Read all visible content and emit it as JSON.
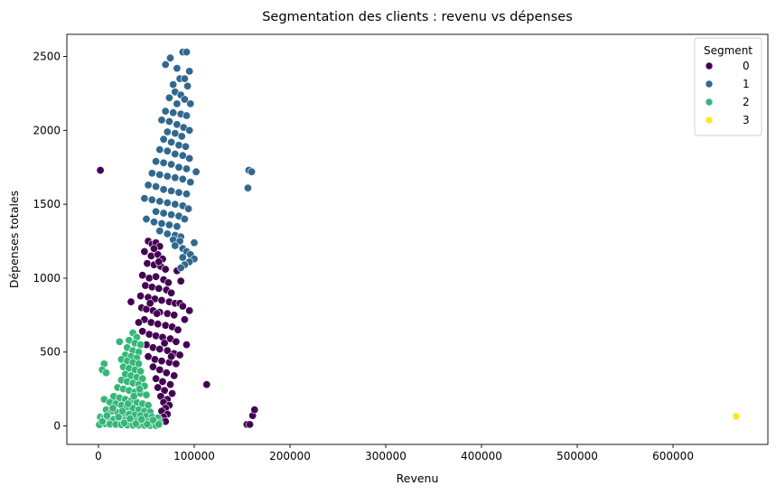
{
  "chart_data": {
    "type": "scatter",
    "title": "Segmentation des clients : revenu vs dépenses",
    "xlabel": "Revenu",
    "ylabel": "Dépenses totales",
    "xlim": [
      -33000,
      699000
    ],
    "ylim": [
      -125,
      2650
    ],
    "xticks": [
      0,
      100000,
      200000,
      300000,
      400000,
      500000,
      600000
    ],
    "xtick_labels": [
      "0",
      "100000",
      "200000",
      "300000",
      "400000",
      "500000",
      "600000"
    ],
    "yticks": [
      0,
      500,
      1000,
      1500,
      2000,
      2500
    ],
    "ytick_labels": [
      "0",
      "500",
      "1000",
      "1500",
      "2000",
      "2500"
    ],
    "grid": false,
    "legend": {
      "title": "Segment",
      "placement": "top-right"
    },
    "series": [
      {
        "name": "0",
        "color": "#440154",
        "points": [
          [
            52000,
            1250
          ],
          [
            56000,
            1230
          ],
          [
            60000,
            1240
          ],
          [
            64000,
            1215
          ],
          [
            48000,
            1180
          ],
          [
            55000,
            1150
          ],
          [
            62000,
            1160
          ],
          [
            67000,
            1130
          ],
          [
            51000,
            1100
          ],
          [
            58000,
            1090
          ],
          [
            65000,
            1080
          ],
          [
            70000,
            1060
          ],
          [
            46000,
            1020
          ],
          [
            53000,
            1000
          ],
          [
            60000,
            1010
          ],
          [
            68000,
            990
          ],
          [
            73000,
            970
          ],
          [
            49000,
            950
          ],
          [
            56000,
            940
          ],
          [
            63000,
            930
          ],
          [
            71000,
            920
          ],
          [
            76000,
            900
          ],
          [
            44000,
            880
          ],
          [
            52000,
            870
          ],
          [
            59000,
            860
          ],
          [
            66000,
            850
          ],
          [
            74000,
            840
          ],
          [
            80000,
            830
          ],
          [
            85000,
            830
          ],
          [
            88000,
            810
          ],
          [
            45000,
            800
          ],
          [
            50000,
            790
          ],
          [
            57000,
            780
          ],
          [
            64000,
            770
          ],
          [
            72000,
            760
          ],
          [
            79000,
            750
          ],
          [
            48000,
            720
          ],
          [
            55000,
            700
          ],
          [
            62000,
            690
          ],
          [
            70000,
            680
          ],
          [
            77000,
            670
          ],
          [
            83000,
            650
          ],
          [
            46000,
            640
          ],
          [
            53000,
            620
          ],
          [
            60000,
            610
          ],
          [
            67000,
            600
          ],
          [
            75000,
            590
          ],
          [
            81000,
            570
          ],
          [
            50000,
            550
          ],
          [
            57000,
            530
          ],
          [
            64000,
            520
          ],
          [
            72000,
            510
          ],
          [
            79000,
            490
          ],
          [
            85000,
            480
          ],
          [
            92000,
            550
          ],
          [
            52000,
            470
          ],
          [
            59000,
            450
          ],
          [
            66000,
            440
          ],
          [
            74000,
            430
          ],
          [
            81000,
            420
          ],
          [
            57000,
            400
          ],
          [
            64000,
            380
          ],
          [
            71000,
            360
          ],
          [
            79000,
            340
          ],
          [
            60000,
            320
          ],
          [
            67000,
            300
          ],
          [
            75000,
            280
          ],
          [
            62000,
            260
          ],
          [
            69000,
            240
          ],
          [
            77000,
            220
          ],
          [
            65000,
            200
          ],
          [
            72000,
            180
          ],
          [
            68000,
            160
          ],
          [
            74000,
            140
          ],
          [
            70000,
            120
          ],
          [
            66000,
            100
          ],
          [
            72000,
            80
          ],
          [
            68000,
            60
          ],
          [
            64000,
            40
          ],
          [
            70000,
            30
          ],
          [
            34000,
            840
          ],
          [
            82000,
            1050
          ],
          [
            86000,
            980
          ],
          [
            90000,
            720
          ],
          [
            95000,
            780
          ],
          [
            42000,
            700
          ],
          [
            58000,
            1200
          ],
          [
            63000,
            1110
          ],
          [
            54000,
            830
          ],
          [
            61000,
            760
          ],
          [
            69000,
            560
          ],
          [
            76000,
            470
          ],
          [
            2000,
            1730
          ],
          [
            113000,
            280
          ],
          [
            155000,
            10
          ],
          [
            158000,
            10
          ],
          [
            161000,
            70
          ],
          [
            163000,
            110
          ]
        ]
      },
      {
        "name": "1",
        "color": "#31688e",
        "points": [
          [
            88000,
            2530
          ],
          [
            92000,
            2530
          ],
          [
            75000,
            2490
          ],
          [
            70000,
            2445
          ],
          [
            82000,
            2420
          ],
          [
            95000,
            2400
          ],
          [
            85000,
            2350
          ],
          [
            90000,
            2350
          ],
          [
            78000,
            2310
          ],
          [
            93000,
            2300
          ],
          [
            80000,
            2260
          ],
          [
            86000,
            2240
          ],
          [
            74000,
            2220
          ],
          [
            90000,
            2210
          ],
          [
            82000,
            2180
          ],
          [
            96000,
            2180
          ],
          [
            70000,
            2130
          ],
          [
            78000,
            2120
          ],
          [
            86000,
            2110
          ],
          [
            92000,
            2100
          ],
          [
            66000,
            2070
          ],
          [
            74000,
            2060
          ],
          [
            82000,
            2040
          ],
          [
            89000,
            2020
          ],
          [
            95000,
            2000
          ],
          [
            72000,
            1990
          ],
          [
            80000,
            1980
          ],
          [
            87000,
            1960
          ],
          [
            68000,
            1940
          ],
          [
            76000,
            1920
          ],
          [
            84000,
            1900
          ],
          [
            91000,
            1890
          ],
          [
            64000,
            1870
          ],
          [
            72000,
            1860
          ],
          [
            80000,
            1840
          ],
          [
            88000,
            1830
          ],
          [
            95000,
            1810
          ],
          [
            60000,
            1790
          ],
          [
            68000,
            1780
          ],
          [
            76000,
            1770
          ],
          [
            84000,
            1750
          ],
          [
            92000,
            1740
          ],
          [
            102000,
            1720
          ],
          [
            56000,
            1710
          ],
          [
            64000,
            1700
          ],
          [
            72000,
            1690
          ],
          [
            80000,
            1680
          ],
          [
            88000,
            1670
          ],
          [
            96000,
            1650
          ],
          [
            52000,
            1630
          ],
          [
            60000,
            1620
          ],
          [
            68000,
            1600
          ],
          [
            76000,
            1590
          ],
          [
            84000,
            1580
          ],
          [
            92000,
            1570
          ],
          [
            48000,
            1540
          ],
          [
            56000,
            1530
          ],
          [
            64000,
            1520
          ],
          [
            72000,
            1510
          ],
          [
            80000,
            1500
          ],
          [
            88000,
            1490
          ],
          [
            94000,
            1470
          ],
          [
            60000,
            1450
          ],
          [
            68000,
            1440
          ],
          [
            76000,
            1430
          ],
          [
            84000,
            1420
          ],
          [
            90000,
            1400
          ],
          [
            50000,
            1400
          ],
          [
            58000,
            1380
          ],
          [
            66000,
            1370
          ],
          [
            74000,
            1360
          ],
          [
            82000,
            1350
          ],
          [
            64000,
            1320
          ],
          [
            72000,
            1300
          ],
          [
            80000,
            1290
          ],
          [
            86000,
            1280
          ],
          [
            78000,
            1260
          ],
          [
            85000,
            1250
          ],
          [
            100000,
            1240
          ],
          [
            80000,
            1220
          ],
          [
            88000,
            1200
          ],
          [
            92000,
            1180
          ],
          [
            96000,
            1160
          ],
          [
            88000,
            1140
          ],
          [
            100000,
            1130
          ],
          [
            95000,
            1110
          ],
          [
            90000,
            1090
          ],
          [
            86000,
            1070
          ],
          [
            157000,
            1730
          ],
          [
            160000,
            1720
          ],
          [
            156000,
            1610
          ]
        ]
      },
      {
        "name": "2",
        "color": "#35b779",
        "points": [
          [
            36000,
            630
          ],
          [
            40000,
            600
          ],
          [
            32000,
            580
          ],
          [
            22000,
            570
          ],
          [
            38000,
            560
          ],
          [
            44000,
            550
          ],
          [
            30000,
            530
          ],
          [
            36000,
            510
          ],
          [
            42000,
            500
          ],
          [
            28000,
            480
          ],
          [
            34000,
            470
          ],
          [
            40000,
            460
          ],
          [
            24000,
            450
          ],
          [
            30000,
            440
          ],
          [
            36000,
            430
          ],
          [
            42000,
            420
          ],
          [
            6000,
            420
          ],
          [
            4000,
            380
          ],
          [
            8000,
            360
          ],
          [
            26000,
            400
          ],
          [
            32000,
            390
          ],
          [
            38000,
            380
          ],
          [
            44000,
            370
          ],
          [
            28000,
            350
          ],
          [
            34000,
            340
          ],
          [
            40000,
            330
          ],
          [
            46000,
            320
          ],
          [
            24000,
            310
          ],
          [
            30000,
            300
          ],
          [
            36000,
            290
          ],
          [
            42000,
            280
          ],
          [
            48000,
            270
          ],
          [
            20000,
            260
          ],
          [
            26000,
            250
          ],
          [
            32000,
            240
          ],
          [
            38000,
            230
          ],
          [
            44000,
            220
          ],
          [
            50000,
            210
          ],
          [
            16000,
            200
          ],
          [
            22000,
            190
          ],
          [
            28000,
            180
          ],
          [
            34000,
            170
          ],
          [
            40000,
            160
          ],
          [
            46000,
            150
          ],
          [
            52000,
            140
          ],
          [
            6000,
            180
          ],
          [
            12000,
            160
          ],
          [
            18000,
            150
          ],
          [
            24000,
            140
          ],
          [
            30000,
            130
          ],
          [
            36000,
            120
          ],
          [
            42000,
            110
          ],
          [
            48000,
            100
          ],
          [
            54000,
            95
          ],
          [
            8000,
            110
          ],
          [
            14000,
            100
          ],
          [
            20000,
            90
          ],
          [
            26000,
            85
          ],
          [
            32000,
            80
          ],
          [
            38000,
            75
          ],
          [
            44000,
            70
          ],
          [
            50000,
            65
          ],
          [
            56000,
            60
          ],
          [
            62000,
            55
          ],
          [
            2000,
            60
          ],
          [
            6000,
            55
          ],
          [
            10000,
            50
          ],
          [
            16000,
            45
          ],
          [
            22000,
            40
          ],
          [
            28000,
            38
          ],
          [
            34000,
            35
          ],
          [
            40000,
            32
          ],
          [
            46000,
            30
          ],
          [
            52000,
            28
          ],
          [
            58000,
            25
          ],
          [
            64000,
            22
          ],
          [
            3000,
            20
          ],
          [
            7000,
            15
          ],
          [
            12000,
            12
          ],
          [
            18000,
            10
          ],
          [
            24000,
            8
          ],
          [
            30000,
            6
          ],
          [
            36000,
            5
          ],
          [
            42000,
            5
          ],
          [
            48000,
            4
          ],
          [
            54000,
            3
          ],
          [
            60000,
            3
          ],
          [
            1000,
            8
          ],
          [
            4000,
            30
          ],
          [
            9000,
            70
          ],
          [
            15000,
            120
          ],
          [
            21000,
            60
          ],
          [
            27000,
            20
          ],
          [
            33000,
            50
          ],
          [
            39000,
            15
          ],
          [
            45000,
            45
          ],
          [
            51000,
            12
          ],
          [
            57000,
            40
          ],
          [
            63000,
            10
          ],
          [
            25000,
            100
          ],
          [
            31000,
            150
          ],
          [
            37000,
            200
          ],
          [
            43000,
            250
          ]
        ]
      },
      {
        "name": "3",
        "color": "#fde725",
        "points": [
          [
            666000,
            65
          ]
        ]
      }
    ]
  }
}
